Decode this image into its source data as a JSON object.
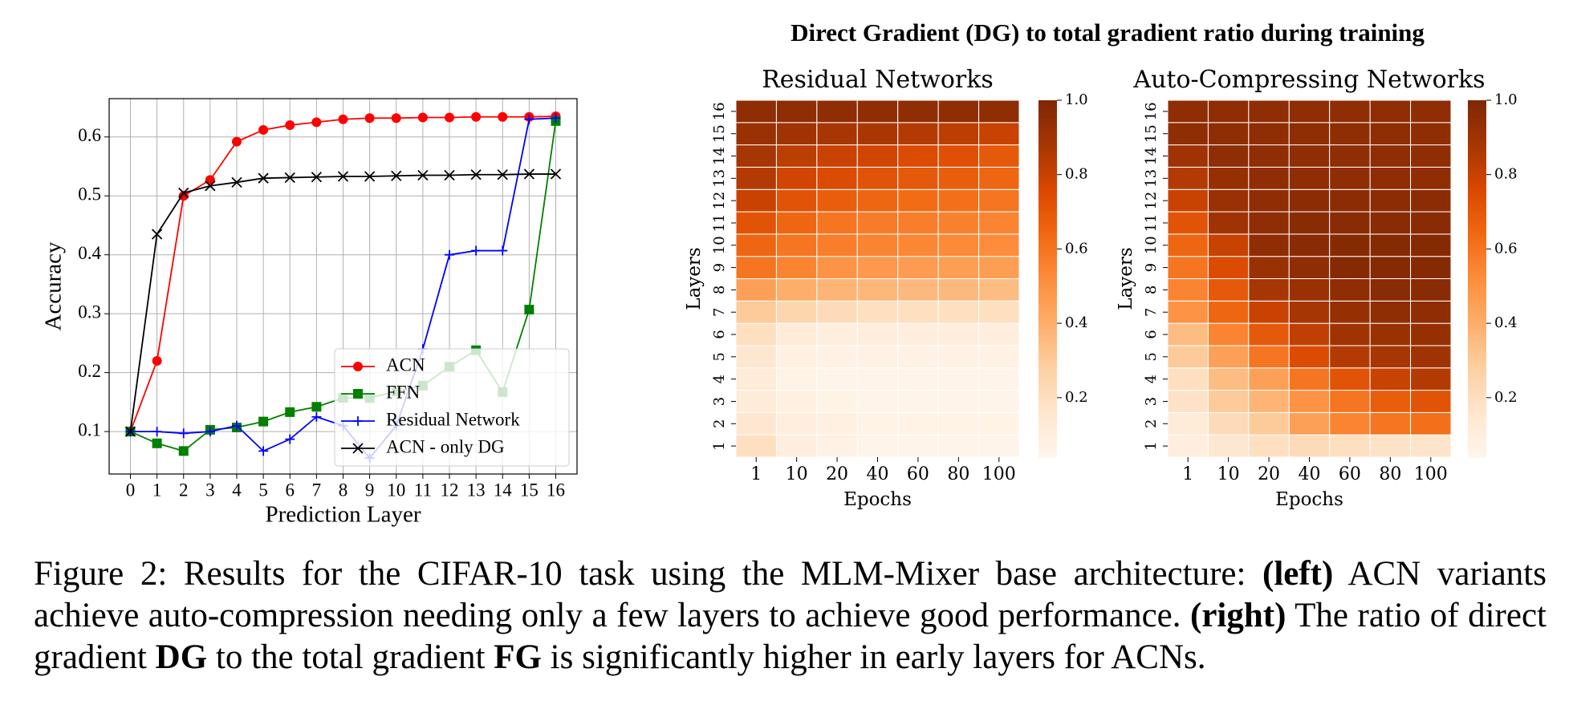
{
  "figure_title": "Direct Gradient (DG) to total gradient ratio during training",
  "chart_data": [
    {
      "type": "line",
      "xlabel": "Prediction Layer",
      "ylabel": "Accuracy",
      "x": [
        0,
        1,
        2,
        3,
        4,
        5,
        6,
        7,
        8,
        9,
        10,
        11,
        12,
        13,
        14,
        15,
        16
      ],
      "xlim": [
        -0.8,
        16.8
      ],
      "xticks": [
        0,
        1,
        2,
        3,
        4,
        5,
        6,
        7,
        8,
        9,
        10,
        11,
        12,
        13,
        14,
        15,
        16
      ],
      "ylim": [
        0.028,
        0.665
      ],
      "yticks": [
        0.1,
        0.2,
        0.3,
        0.4,
        0.5,
        0.6
      ],
      "grid": true,
      "legend": "lower right",
      "series": [
        {
          "name": "ACN",
          "color": "#ff0000",
          "marker": "circle",
          "values": [
            0.1,
            0.22,
            0.5,
            0.527,
            0.592,
            0.612,
            0.62,
            0.625,
            0.63,
            0.632,
            0.632,
            0.633,
            0.633,
            0.634,
            0.634,
            0.634,
            0.635
          ]
        },
        {
          "name": "FFN",
          "color": "#008000",
          "marker": "square",
          "values": [
            0.1,
            0.08,
            0.067,
            0.103,
            0.107,
            0.117,
            0.133,
            0.142,
            0.157,
            0.157,
            0.168,
            0.178,
            0.21,
            0.238,
            0.167,
            0.307,
            0.627
          ]
        },
        {
          "name": "Residual Network",
          "color": "#0000ff",
          "marker": "plus",
          "values": [
            0.1,
            0.1,
            0.097,
            0.1,
            0.11,
            0.067,
            0.087,
            0.125,
            0.11,
            0.055,
            0.11,
            0.24,
            0.4,
            0.407,
            0.407,
            0.63,
            0.632
          ]
        },
        {
          "name": "ACN - only DG",
          "color": "#000000",
          "marker": "x",
          "values": [
            0.1,
            0.435,
            0.505,
            0.517,
            0.523,
            0.53,
            0.531,
            0.532,
            0.533,
            0.533,
            0.534,
            0.535,
            0.535,
            0.536,
            0.536,
            0.537,
            0.537
          ]
        }
      ]
    },
    {
      "type": "heatmap",
      "title": "Residual Networks",
      "xlabel": "Epochs",
      "ylabel": "Layers",
      "x": [
        "1",
        "10",
        "20",
        "40",
        "60",
        "80",
        "100"
      ],
      "y": [
        "1",
        "2",
        "3",
        "4",
        "5",
        "6",
        "7",
        "8",
        "9",
        "10",
        "11",
        "12",
        "13",
        "14",
        "15",
        "16"
      ],
      "zlim": [
        0.04,
        1.0
      ],
      "zticks": [
        0.2,
        0.4,
        0.6,
        0.8,
        {
          "value": 1.0,
          "label": "1.0"
        }
      ],
      "colormap": [
        "#fff5eb",
        "#fee6ce",
        "#fdd0a2",
        "#fdae6b",
        "#fd8d3c",
        "#f16913",
        "#d94801",
        "#a63603",
        "#7f2704"
      ],
      "values": [
        [
          0.2,
          0.1,
          0.07,
          0.05,
          0.05,
          0.05,
          0.05
        ],
        [
          0.15,
          0.1,
          0.08,
          0.06,
          0.06,
          0.06,
          0.06
        ],
        [
          0.12,
          0.08,
          0.06,
          0.05,
          0.05,
          0.05,
          0.05
        ],
        [
          0.12,
          0.06,
          0.05,
          0.05,
          0.05,
          0.05,
          0.05
        ],
        [
          0.15,
          0.08,
          0.07,
          0.07,
          0.07,
          0.07,
          0.07
        ],
        [
          0.2,
          0.12,
          0.1,
          0.1,
          0.1,
          0.1,
          0.1
        ],
        [
          0.3,
          0.25,
          0.22,
          0.2,
          0.2,
          0.2,
          0.2
        ],
        [
          0.45,
          0.4,
          0.38,
          0.37,
          0.36,
          0.36,
          0.35
        ],
        [
          0.6,
          0.55,
          0.5,
          0.48,
          0.47,
          0.46,
          0.46
        ],
        [
          0.65,
          0.6,
          0.57,
          0.55,
          0.54,
          0.53,
          0.52
        ],
        [
          0.72,
          0.65,
          0.6,
          0.58,
          0.57,
          0.56,
          0.55
        ],
        [
          0.8,
          0.72,
          0.68,
          0.65,
          0.63,
          0.62,
          0.6
        ],
        [
          0.85,
          0.78,
          0.75,
          0.72,
          0.7,
          0.68,
          0.65
        ],
        [
          0.88,
          0.83,
          0.8,
          0.78,
          0.75,
          0.73,
          0.7
        ],
        [
          0.92,
          0.9,
          0.88,
          0.87,
          0.85,
          0.83,
          0.8
        ],
        [
          0.95,
          0.95,
          0.95,
          0.95,
          0.95,
          0.95,
          0.95
        ]
      ]
    },
    {
      "type": "heatmap",
      "title": "Auto-Compressing Networks",
      "xlabel": "Epochs",
      "ylabel": "Layers",
      "x": [
        "1",
        "10",
        "20",
        "40",
        "60",
        "80",
        "100"
      ],
      "y": [
        "1",
        "2",
        "3",
        "4",
        "5",
        "6",
        "7",
        "8",
        "9",
        "10",
        "11",
        "12",
        "13",
        "14",
        "15",
        "16"
      ],
      "zlim": [
        0.04,
        1.0
      ],
      "zticks": [
        0.2,
        0.4,
        0.6,
        0.8,
        {
          "value": 1.0,
          "label": "1.0"
        }
      ],
      "colormap": [
        "#fff5eb",
        "#fee6ce",
        "#fdd0a2",
        "#fdae6b",
        "#fd8d3c",
        "#f16913",
        "#d94801",
        "#a63603",
        "#7f2704"
      ],
      "values": [
        [
          0.1,
          0.15,
          0.2,
          0.22,
          0.2,
          0.18,
          0.17
        ],
        [
          0.12,
          0.22,
          0.3,
          0.45,
          0.55,
          0.6,
          0.62
        ],
        [
          0.18,
          0.3,
          0.38,
          0.5,
          0.6,
          0.68,
          0.72
        ],
        [
          0.2,
          0.35,
          0.45,
          0.6,
          0.72,
          0.8,
          0.85
        ],
        [
          0.3,
          0.45,
          0.6,
          0.75,
          0.85,
          0.88,
          0.9
        ],
        [
          0.35,
          0.55,
          0.7,
          0.82,
          0.9,
          0.92,
          0.93
        ],
        [
          0.5,
          0.65,
          0.8,
          0.88,
          0.93,
          0.95,
          0.95
        ],
        [
          0.55,
          0.7,
          0.88,
          0.92,
          0.95,
          0.97,
          0.97
        ],
        [
          0.6,
          0.75,
          0.92,
          0.95,
          0.98,
          0.98,
          0.98
        ],
        [
          0.65,
          0.8,
          0.95,
          0.97,
          0.98,
          0.98,
          0.98
        ],
        [
          0.72,
          0.9,
          0.95,
          0.97,
          0.97,
          0.97,
          0.97
        ],
        [
          0.8,
          0.92,
          0.95,
          0.96,
          0.96,
          0.96,
          0.96
        ],
        [
          0.85,
          0.93,
          0.95,
          0.95,
          0.95,
          0.95,
          0.95
        ],
        [
          0.9,
          0.95,
          0.95,
          0.95,
          0.95,
          0.95,
          0.95
        ],
        [
          0.95,
          0.95,
          0.95,
          0.95,
          0.95,
          0.95,
          0.95
        ],
        [
          0.95,
          0.95,
          0.95,
          0.95,
          0.95,
          0.95,
          0.95
        ]
      ]
    }
  ],
  "caption": [
    {
      "text": "Figure 2: Results for the CIFAR-10 task using the MLM-Mixer base architecture: "
    },
    {
      "text": "(left)",
      "bold": true
    },
    {
      "text": " ACN variants achieve auto-compression needing only a few layers to achieve good performance. "
    },
    {
      "text": "(right)",
      "bold": true
    },
    {
      "text": " The ratio of direct gradient "
    },
    {
      "text": "DG",
      "bold": true
    },
    {
      "text": " to the total gradient "
    },
    {
      "text": "FG",
      "bold": true
    },
    {
      "text": " is significantly higher in early layers for ACNs."
    }
  ]
}
